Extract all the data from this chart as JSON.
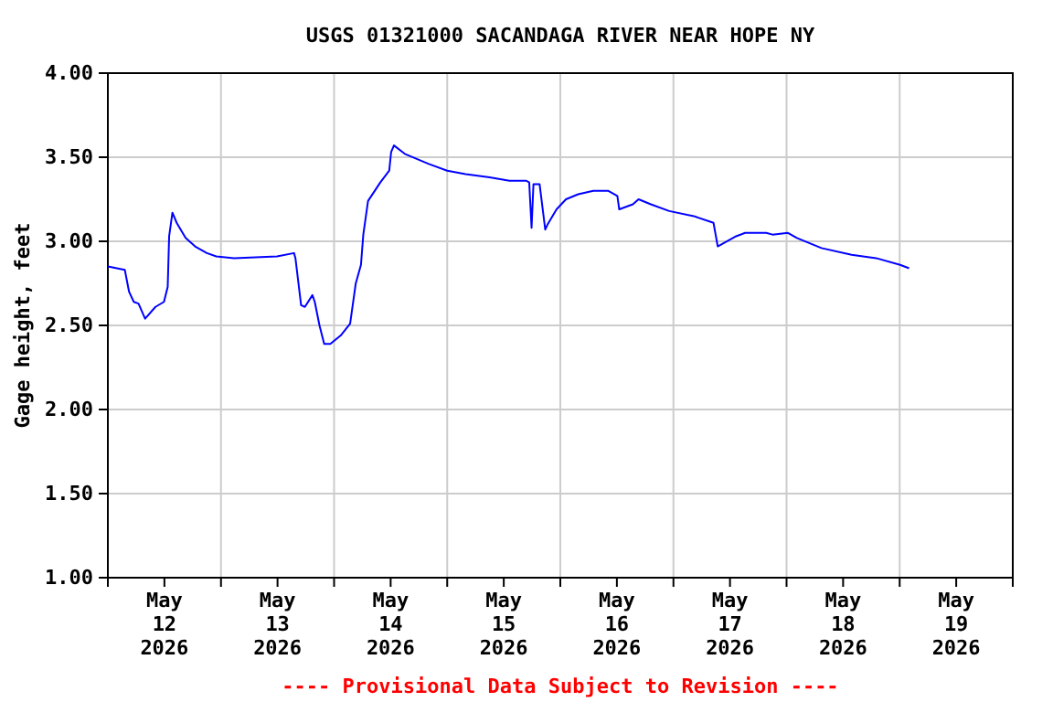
{
  "chart_data": {
    "type": "line",
    "title": "USGS 01321000 SACANDAGA RIVER NEAR HOPE NY",
    "ylabel": "Gage height, feet",
    "annotations": [
      "---- Provisional Data Subject to Revision ----"
    ],
    "xlim": [
      "2026-05-12T00:00",
      "2026-05-20T00:00"
    ],
    "xticks": [
      {
        "value": "2026-05-12T00:00",
        "label": null
      },
      {
        "value": "2026-05-12T12:00",
        "label": "May\n12\n2026"
      },
      {
        "value": "2026-05-13T00:00",
        "label": null
      },
      {
        "value": "2026-05-13T12:00",
        "label": "May\n13\n2026"
      },
      {
        "value": "2026-05-14T00:00",
        "label": null
      },
      {
        "value": "2026-05-14T12:00",
        "label": "May\n14\n2026"
      },
      {
        "value": "2026-05-15T00:00",
        "label": null
      },
      {
        "value": "2026-05-15T12:00",
        "label": "May\n15\n2026"
      },
      {
        "value": "2026-05-16T00:00",
        "label": null
      },
      {
        "value": "2026-05-16T12:00",
        "label": "May\n16\n2026"
      },
      {
        "value": "2026-05-17T00:00",
        "label": null
      },
      {
        "value": "2026-05-17T12:00",
        "label": "May\n17\n2026"
      },
      {
        "value": "2026-05-18T00:00",
        "label": null
      },
      {
        "value": "2026-05-18T12:00",
        "label": "May\n18\n2026"
      },
      {
        "value": "2026-05-19T00:00",
        "label": null
      },
      {
        "value": "2026-05-19T12:00",
        "label": "May\n19\n2026"
      },
      {
        "value": "2026-05-20T00:00",
        "label": null
      }
    ],
    "ylim": [
      1,
      4
    ],
    "yticks": [
      {
        "value": 1,
        "label": "1.00"
      },
      {
        "value": 1.5,
        "label": "1.50"
      },
      {
        "value": 2,
        "label": "2.00"
      },
      {
        "value": 2.5,
        "label": "2.50"
      },
      {
        "value": 3,
        "label": "3.00"
      },
      {
        "value": 3.5,
        "label": "3.50"
      },
      {
        "value": 4,
        "label": "4.00"
      }
    ],
    "grid": true,
    "marker": "none",
    "line_style": "solid",
    "series": [
      {
        "color": "#0000ff",
        "x": [
          "2026-05-12T00:00",
          "2026-05-12T03:36",
          "2026-05-12T04:30",
          "2026-05-12T05:30",
          "2026-05-12T06:30",
          "2026-05-12T07:54",
          "2026-05-12T10:06",
          "2026-05-12T11:54",
          "2026-05-12T12:42",
          "2026-05-12T13:00",
          "2026-05-12T13:42",
          "2026-05-12T14:36",
          "2026-05-12T16:30",
          "2026-05-12T18:30",
          "2026-05-12T21:00",
          "2026-05-12T23:00",
          "2026-05-13T02:48",
          "2026-05-13T11:54",
          "2026-05-13T15:30",
          "2026-05-13T15:48",
          "2026-05-13T17:00",
          "2026-05-13T17:48",
          "2026-05-13T19:24",
          "2026-05-13T19:54",
          "2026-05-13T20:54",
          "2026-05-13T21:54",
          "2026-05-13T23:12",
          "2026-05-14T01:24",
          "2026-05-14T03:24",
          "2026-05-14T04:36",
          "2026-05-14T05:42",
          "2026-05-14T06:12",
          "2026-05-14T07:12",
          "2026-05-14T09:48",
          "2026-05-14T11:42",
          "2026-05-14T12:06",
          "2026-05-14T12:42",
          "2026-05-14T15:00",
          "2026-05-14T20:06",
          "2026-05-15T00:00",
          "2026-05-15T03:54",
          "2026-05-15T09:00",
          "2026-05-15T13:12",
          "2026-05-15T16:48",
          "2026-05-15T17:24",
          "2026-05-15T17:54",
          "2026-05-15T18:18",
          "2026-05-15T19:36",
          "2026-05-15T20:48",
          "2026-05-15T21:18",
          "2026-05-15T23:12",
          "2026-05-16T01:12",
          "2026-05-16T03:48",
          "2026-05-16T07:00",
          "2026-05-16T10:12",
          "2026-05-16T12:06",
          "2026-05-16T12:30",
          "2026-05-16T15:24",
          "2026-05-16T16:36",
          "2026-05-16T19:12",
          "2026-05-16T23:06",
          "2026-05-17T04:18",
          "2026-05-17T08:30",
          "2026-05-17T09:24",
          "2026-05-17T13:18",
          "2026-05-17T15:12",
          "2026-05-17T19:42",
          "2026-05-17T21:00",
          "2026-05-18T00:18",
          "2026-05-18T02:12",
          "2026-05-18T07:24",
          "2026-05-18T13:48",
          "2026-05-18T19:00",
          "2026-05-19T00:06",
          "2026-05-19T02:00"
        ],
        "values": [
          2.85,
          2.83,
          2.7,
          2.64,
          2.63,
          2.54,
          2.61,
          2.64,
          2.73,
          3.03,
          3.17,
          3.11,
          3.02,
          2.97,
          2.93,
          2.91,
          2.9,
          2.91,
          2.93,
          2.9,
          2.62,
          2.61,
          2.68,
          2.64,
          2.5,
          2.39,
          2.39,
          2.44,
          2.51,
          2.75,
          2.86,
          3.04,
          3.24,
          3.35,
          3.42,
          3.53,
          3.57,
          3.52,
          3.46,
          3.42,
          3.4,
          3.38,
          3.36,
          3.36,
          3.35,
          3.08,
          3.34,
          3.34,
          3.07,
          3.1,
          3.19,
          3.25,
          3.28,
          3.3,
          3.3,
          3.27,
          3.19,
          3.22,
          3.25,
          3.22,
          3.18,
          3.15,
          3.11,
          2.97,
          3.03,
          3.05,
          3.05,
          3.04,
          3.05,
          3.02,
          2.96,
          2.92,
          2.9,
          2.86,
          2.84
        ]
      }
    ]
  }
}
